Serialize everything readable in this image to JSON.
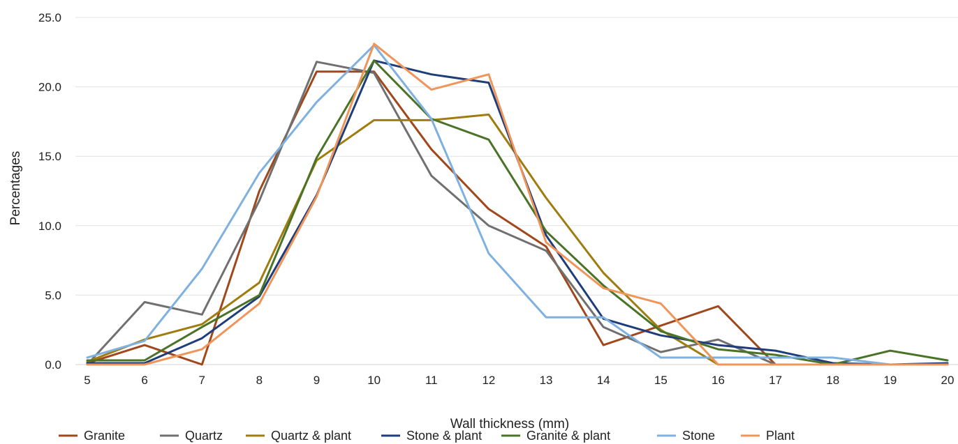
{
  "chart_data": {
    "type": "line",
    "title": "",
    "xlabel": "Wall thickness (mm)",
    "ylabel": "Percentages",
    "x": [
      5,
      6,
      7,
      8,
      9,
      10,
      11,
      12,
      13,
      14,
      15,
      16,
      17,
      18,
      19,
      20
    ],
    "ylim": [
      0,
      25
    ],
    "yticks": [
      "0.0",
      "5.0",
      "10.0",
      "15.0",
      "20.0",
      "25.0"
    ],
    "grid": true,
    "legend_position": "bottom",
    "series": [
      {
        "name": "Granite",
        "color": "#a0471c",
        "values": [
          0.1,
          1.4,
          0.0,
          12.5,
          21.1,
          21.1,
          15.5,
          11.2,
          8.5,
          1.4,
          2.8,
          4.2,
          0.0,
          0.0,
          0.0,
          0.0
        ]
      },
      {
        "name": "Quartz",
        "color": "#707070",
        "values": [
          0.0,
          4.5,
          3.6,
          11.8,
          21.8,
          21.0,
          13.6,
          10.0,
          8.2,
          2.7,
          0.9,
          1.8,
          0.0,
          0.0,
          0.0,
          0.0
        ]
      },
      {
        "name": "Quartz & plant",
        "color": "#a07c0e",
        "values": [
          0.2,
          1.8,
          2.9,
          5.9,
          14.7,
          17.6,
          17.6,
          18.0,
          12.0,
          6.6,
          2.5,
          0.0,
          0.0,
          0.0,
          0.0,
          0.0
        ]
      },
      {
        "name": "Stone & plant",
        "color": "#1f3d7a",
        "values": [
          0.1,
          0.1,
          1.9,
          4.9,
          12.2,
          21.9,
          20.9,
          20.3,
          9.3,
          3.3,
          2.1,
          1.4,
          1.0,
          0.1,
          0.0,
          0.1
        ]
      },
      {
        "name": "Granite & plant",
        "color": "#4a7328",
        "values": [
          0.3,
          0.3,
          2.7,
          5.0,
          14.9,
          21.9,
          17.7,
          16.2,
          9.6,
          5.7,
          2.4,
          1.1,
          0.7,
          0.0,
          1.0,
          0.3
        ]
      },
      {
        "name": "Stone",
        "color": "#7fb1e0",
        "values": [
          0.5,
          1.7,
          6.9,
          13.8,
          18.9,
          23.0,
          17.7,
          8.0,
          3.4,
          3.4,
          0.5,
          0.5,
          0.5,
          0.5,
          0.0,
          0.0
        ]
      },
      {
        "name": "Plant",
        "color": "#f0955a",
        "values": [
          0.0,
          0.0,
          1.1,
          4.4,
          12.1,
          23.1,
          19.8,
          20.9,
          8.8,
          5.5,
          4.4,
          0.0,
          0.0,
          0.0,
          0.0,
          0.0
        ]
      }
    ]
  }
}
